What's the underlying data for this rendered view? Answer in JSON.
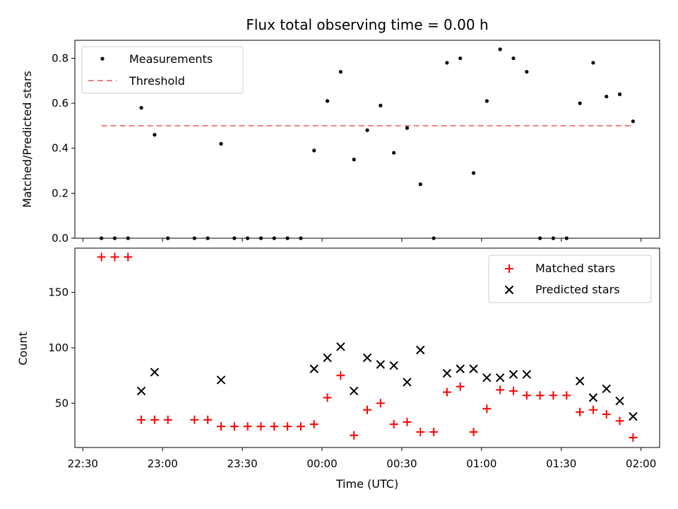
{
  "figure_title": "Flux total observing time = 0.00 h",
  "colors": {
    "measurement": "#000000",
    "threshold": "#f08080",
    "matched": "#ff0000",
    "predicted": "#000000"
  },
  "chart_data": [
    {
      "type": "scatter",
      "title": "Flux total observing time = 0.00 h",
      "ylabel": "Matched/Predicted stars",
      "xlim": [
        "22:27",
        "02:07"
      ],
      "ylim": [
        0,
        0.88
      ],
      "yticks": [
        "0.0",
        "0.2",
        "0.4",
        "0.6",
        "0.8"
      ],
      "legend": {
        "position": "top-left",
        "entries": [
          "Measurements",
          "Threshold"
        ]
      },
      "threshold": {
        "name": "Threshold",
        "value": 0.5,
        "x_start": "22:37",
        "x_end": "01:57"
      },
      "series": [
        {
          "name": "Measurements",
          "x": [
            "22:37",
            "22:42",
            "22:47",
            "22:52",
            "22:57",
            "23:02",
            "23:12",
            "23:17",
            "23:22",
            "23:27",
            "23:32",
            "23:37",
            "23:42",
            "23:47",
            "23:52",
            "23:57",
            "00:02",
            "00:07",
            "00:12",
            "00:17",
            "00:22",
            "00:27",
            "00:32",
            "00:37",
            "00:42",
            "00:47",
            "00:52",
            "00:57",
            "01:02",
            "01:07",
            "01:12",
            "01:17",
            "01:22",
            "01:27",
            "01:32",
            "01:37",
            "01:42",
            "01:47",
            "01:52",
            "01:57"
          ],
          "y": [
            0.0,
            0.0,
            0.0,
            0.58,
            0.46,
            0.0,
            0.0,
            0.0,
            0.42,
            0.0,
            0.0,
            0.0,
            0.0,
            0.0,
            0.0,
            0.39,
            0.61,
            0.74,
            0.35,
            0.48,
            0.59,
            0.38,
            0.49,
            0.24,
            0.0,
            0.78,
            0.8,
            0.29,
            0.61,
            0.84,
            0.8,
            0.74,
            0.0,
            0.0,
            0.0,
            0.6,
            0.78,
            0.63,
            0.64,
            0.52
          ]
        }
      ]
    },
    {
      "type": "scatter",
      "xlabel": "Time (UTC)",
      "ylabel": "Count",
      "xlim": [
        "22:27",
        "02:07"
      ],
      "ylim": [
        10,
        190
      ],
      "yticks": [
        "50",
        "100",
        "150"
      ],
      "xticks": [
        "22:30",
        "23:00",
        "23:30",
        "00:00",
        "00:30",
        "01:00",
        "01:30",
        "02:00"
      ],
      "legend": {
        "position": "top-right",
        "entries": [
          "Matched stars",
          "Predicted stars"
        ]
      },
      "series": [
        {
          "name": "Matched stars",
          "marker": "+",
          "x": [
            "22:37",
            "22:42",
            "22:47",
            "22:52",
            "22:57",
            "23:02",
            "23:12",
            "23:17",
            "23:22",
            "23:27",
            "23:32",
            "23:37",
            "23:42",
            "23:47",
            "23:52",
            "23:57",
            "00:02",
            "00:07",
            "00:12",
            "00:17",
            "00:22",
            "00:27",
            "00:32",
            "00:37",
            "00:42",
            "00:47",
            "00:52",
            "00:57",
            "01:02",
            "01:07",
            "01:12",
            "01:17",
            "01:22",
            "01:27",
            "01:32",
            "01:37",
            "01:42",
            "01:47",
            "01:52",
            "01:57"
          ],
          "y": [
            182,
            182,
            182,
            35,
            35,
            35,
            35,
            35,
            29,
            29,
            29,
            29,
            29,
            29,
            29,
            31,
            55,
            75,
            21,
            44,
            50,
            31,
            33,
            24,
            24,
            60,
            65,
            24,
            45,
            62,
            61,
            57,
            57,
            57,
            57,
            42,
            44,
            40,
            34,
            19
          ]
        },
        {
          "name": "Predicted stars",
          "marker": "x",
          "x": [
            "22:52",
            "22:57",
            "23:22",
            "23:57",
            "00:02",
            "00:07",
            "00:12",
            "00:17",
            "00:22",
            "00:27",
            "00:32",
            "00:37",
            "00:47",
            "00:52",
            "00:57",
            "01:02",
            "01:07",
            "01:12",
            "01:17",
            "01:37",
            "01:42",
            "01:47",
            "01:52",
            "01:57"
          ],
          "y": [
            61,
            78,
            71,
            81,
            91,
            101,
            61,
            91,
            85,
            84,
            69,
            98,
            77,
            81,
            81,
            73,
            73,
            76,
            76,
            70,
            55,
            63,
            52,
            38
          ]
        }
      ]
    }
  ]
}
